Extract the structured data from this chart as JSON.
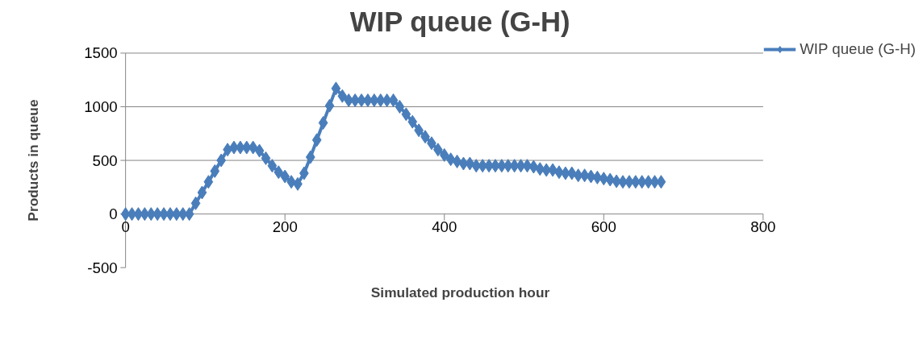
{
  "chart_data": {
    "type": "line",
    "title": "WIP queue (G-H)",
    "xlabel": "Simulated production hour",
    "ylabel": "Products in queue",
    "xlim": [
      0,
      800
    ],
    "xticks": [
      0,
      200,
      400,
      600,
      800
    ],
    "ylim": [
      -500,
      1500
    ],
    "yticks": [
      -500,
      0,
      500,
      1000,
      1500
    ],
    "grid": "y",
    "legend": "right",
    "marker": "diamond",
    "line_style": "solid",
    "series": [
      {
        "name": "WIP queue (G-H)",
        "color": "#4a7ebb",
        "x": [
          0,
          8,
          16,
          24,
          32,
          40,
          48,
          56,
          64,
          72,
          80,
          88,
          96,
          104,
          112,
          120,
          128,
          136,
          144,
          152,
          160,
          168,
          176,
          184,
          192,
          200,
          208,
          216,
          224,
          232,
          240,
          248,
          256,
          264,
          272,
          280,
          288,
          296,
          304,
          312,
          320,
          328,
          336,
          344,
          352,
          360,
          368,
          376,
          384,
          392,
          400,
          408,
          416,
          424,
          432,
          440,
          448,
          456,
          464,
          472,
          480,
          488,
          496,
          504,
          512,
          520,
          528,
          536,
          544,
          552,
          560,
          568,
          576,
          584,
          592,
          600,
          608,
          616,
          624,
          632,
          640,
          648,
          656,
          664,
          672
        ],
        "values": [
          0,
          0,
          0,
          0,
          0,
          0,
          0,
          0,
          0,
          0,
          0,
          100,
          200,
          300,
          400,
          500,
          600,
          620,
          620,
          620,
          620,
          590,
          520,
          450,
          390,
          350,
          300,
          280,
          380,
          530,
          690,
          850,
          1010,
          1170,
          1100,
          1060,
          1060,
          1060,
          1060,
          1060,
          1060,
          1060,
          1060,
          1000,
          930,
          860,
          780,
          720,
          660,
          600,
          550,
          510,
          490,
          470,
          470,
          450,
          450,
          450,
          450,
          450,
          450,
          450,
          450,
          450,
          440,
          420,
          410,
          410,
          390,
          380,
          380,
          360,
          360,
          350,
          340,
          330,
          320,
          305,
          300,
          300,
          300,
          300,
          300,
          300,
          300
        ]
      }
    ]
  }
}
